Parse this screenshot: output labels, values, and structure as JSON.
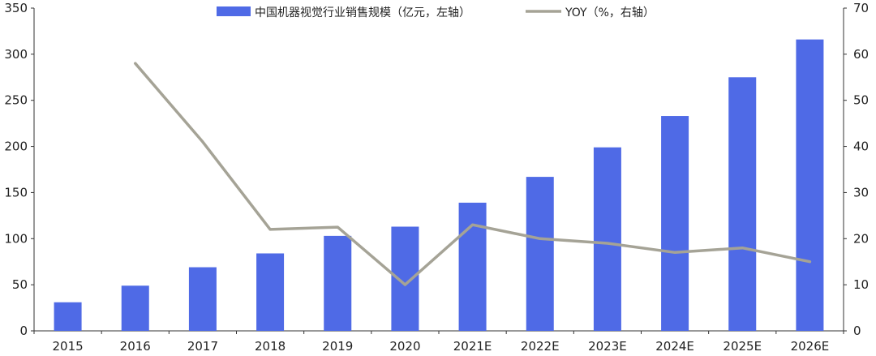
{
  "chart_data": {
    "type": "bar",
    "categories": [
      "2015",
      "2016",
      "2017",
      "2018",
      "2019",
      "2020",
      "2021E",
      "2022E",
      "2023E",
      "2024E",
      "2025E",
      "2026E"
    ],
    "series": [
      {
        "name": "中国机器视觉行业销售规模（亿元，左轴）",
        "type": "bar",
        "axis": "left",
        "color": "#4f6ae6",
        "values": [
          31,
          49,
          69,
          84,
          103,
          113,
          139,
          167,
          199,
          233,
          275,
          316
        ]
      },
      {
        "name": "YOY（%，右轴）",
        "type": "line",
        "axis": "right",
        "color": "#a5a396",
        "values": [
          null,
          58,
          41,
          22,
          22.5,
          10,
          23,
          20,
          19,
          17,
          18,
          15
        ]
      }
    ],
    "y_left": {
      "lim": [
        0,
        350
      ],
      "ticks": [
        "0",
        "50",
        "100",
        "150",
        "200",
        "250",
        "300",
        "350"
      ]
    },
    "y_right": {
      "lim": [
        0,
        70
      ],
      "ticks": [
        "0",
        "10",
        "20",
        "30",
        "40",
        "50",
        "60",
        "70"
      ]
    },
    "grid": false,
    "legend_position": "top"
  }
}
